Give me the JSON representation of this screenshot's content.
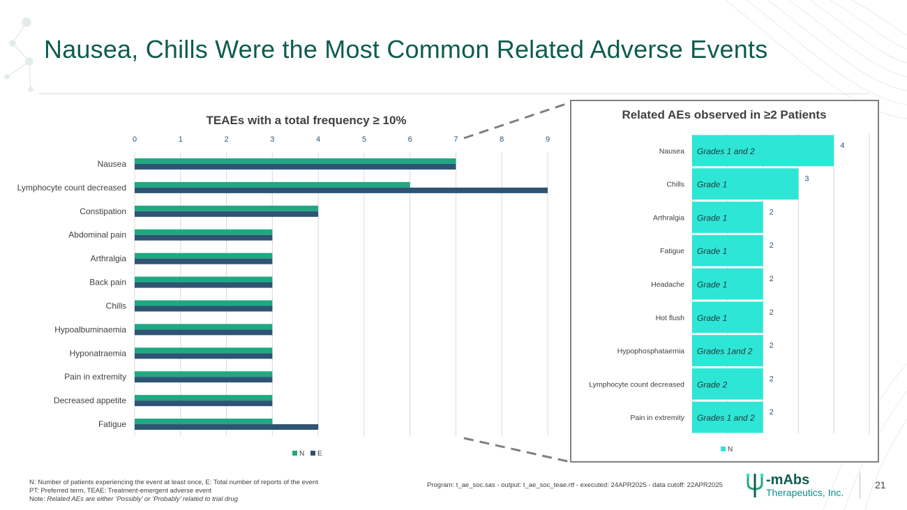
{
  "slide": {
    "title": "Nausea, Chills Were the Most Common Related Adverse Events",
    "footnotes": [
      "N: Number of patients experiencing the event at least once, E: Total number of reports of the event",
      "PT: Preferred term, TEAE: Treatment-emergent adverse event"
    ],
    "note_prefix": "Note: ",
    "note_italic": "Related AEs are either ‘Possibly’ or ‘Probably’ related to trial drug",
    "program_text": "Program: t_ae_soc.sas - output: t_ae_soc_teae.rtf - executed: 24APR2025 - data cutoff: 22APR2025",
    "page_number": "21",
    "logo": {
      "mark": "Ψ",
      "name": "-mAbs",
      "subtitle": "Therapeutics, Inc."
    },
    "colors": {
      "title": "#0e5c4f",
      "series_N": "#1fa882",
      "series_E": "#2f5372",
      "inset_bar": "#2ee6d6"
    }
  },
  "chart_data": [
    {
      "type": "bar",
      "orientation": "horizontal",
      "title": "TEAEs with a total frequency ≥ 10%",
      "categories": [
        "Nausea",
        "Lymphocyte count decreased",
        "Constipation",
        "Abdominal pain",
        "Arthralgia",
        "Back pain",
        "Chills",
        "Hypoalbuminaemia",
        "Hyponatraemia",
        "Pain in extremity",
        "Decreased appetite",
        "Fatigue"
      ],
      "series": [
        {
          "name": "N",
          "values": [
            7,
            6,
            4,
            3,
            3,
            3,
            3,
            3,
            3,
            3,
            3,
            3
          ]
        },
        {
          "name": "E",
          "values": [
            7,
            9,
            4,
            3,
            3,
            3,
            3,
            3,
            3,
            3,
            3,
            4
          ]
        }
      ],
      "xlim": [
        0,
        9
      ],
      "xticks": [
        0,
        1,
        2,
        3,
        4,
        5,
        6,
        7,
        8,
        9
      ],
      "axis_position": "top",
      "grid": true,
      "legend": "bottom"
    },
    {
      "type": "bar",
      "orientation": "horizontal",
      "title": "Related AEs observed in  ≥2 Patients",
      "categories": [
        "Nausea",
        "Chills",
        "Arthralgia",
        "Fatigue",
        "Headache",
        "Hot flush",
        "Hypophosphataemia",
        "Lymphocyte count decreased",
        "Pain in extremity"
      ],
      "series": [
        {
          "name": "N",
          "values": [
            4,
            3,
            2,
            2,
            2,
            2,
            2,
            2,
            2
          ]
        }
      ],
      "annotations": [
        "Grades 1 and 2",
        "Grade 1",
        "Grade 1",
        "Grade 1",
        "Grade 1",
        "Grade 1",
        "Grades 1and 2",
        "Grade 2",
        "Grades 1 and 2"
      ],
      "xlim": [
        0,
        5
      ],
      "grid": true,
      "data_labels": true,
      "legend": "bottom"
    }
  ]
}
